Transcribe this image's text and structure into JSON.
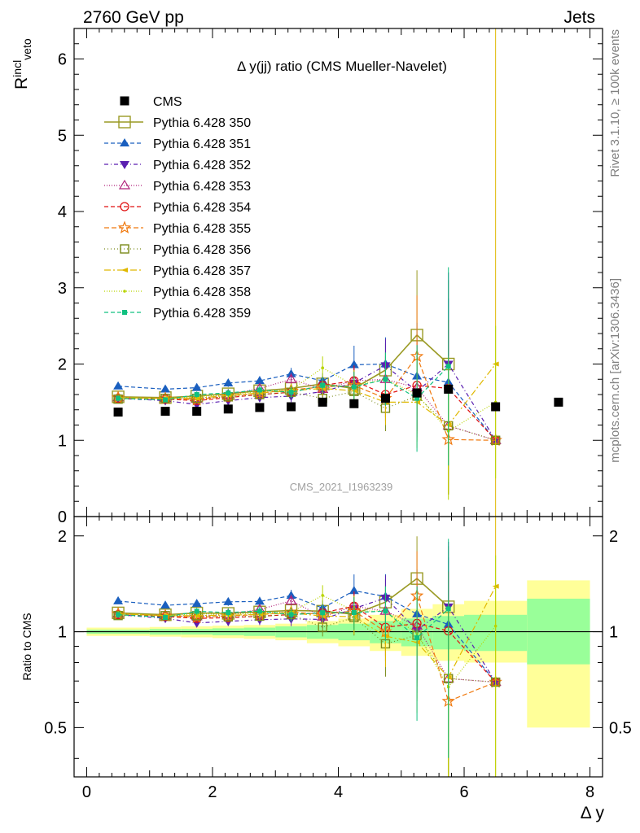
{
  "header": {
    "left": "2760 GeV pp",
    "right": "Jets",
    "side_top": "Rivet 3.1.10, ≥ 100k events",
    "side_bottom": "mcplots.cern.ch [arXiv:1306.3436]",
    "watermark": "CMS_2021_I1963239"
  },
  "colors": {
    "ref_band_inner": "#99ff99",
    "ref_band_outer": "#ffff99"
  },
  "chart_data": {
    "type": "scatter",
    "title": "Δ y(jj) ratio (CMS Mueller-Navelet)",
    "ylabel": "R^incl_veto",
    "xlabel": "Δ y",
    "ratio_ylabel": "Ratio to CMS",
    "xlim": [
      -0.2,
      8.2
    ],
    "ylim": [
      0,
      6.4
    ],
    "ratio_ylim": [
      0.35,
      2.3
    ],
    "ratio_scale": "log",
    "x_ticks": [
      "0",
      "2",
      "4",
      "6",
      "8"
    ],
    "y_ticks": [
      "0",
      "1",
      "2",
      "3",
      "4",
      "5",
      "6"
    ],
    "ratio_ticks": [
      "0.5",
      "1",
      "2"
    ],
    "legend_position": "top-left",
    "data": {
      "name": "CMS",
      "color": "#000000",
      "x": [
        0.5,
        1.25,
        1.75,
        2.25,
        2.75,
        3.25,
        3.75,
        4.25,
        4.75,
        5.25,
        5.75,
        6.5,
        7.5
      ],
      "y": [
        1.37,
        1.38,
        1.38,
        1.41,
        1.43,
        1.44,
        1.5,
        1.48,
        1.55,
        1.62,
        1.67,
        1.44,
        1.5
      ],
      "band_xlo": [
        0,
        1,
        1.5,
        2,
        2.5,
        3,
        3.5,
        4,
        4.5,
        5,
        5.5,
        6,
        7
      ],
      "band_xhi": [
        1,
        1.5,
        2,
        2.5,
        3,
        3.5,
        4,
        4.5,
        5,
        5.5,
        6,
        7,
        8
      ],
      "stat_lo": [
        0.985,
        0.98,
        0.98,
        0.975,
        0.97,
        0.96,
        0.95,
        0.94,
        0.92,
        0.9,
        0.88,
        0.87,
        0.79
      ],
      "stat_hi": [
        1.015,
        1.02,
        1.02,
        1.025,
        1.03,
        1.04,
        1.05,
        1.06,
        1.08,
        1.1,
        1.12,
        1.13,
        1.27
      ],
      "tot_lo": [
        0.97,
        0.965,
        0.96,
        0.955,
        0.95,
        0.94,
        0.92,
        0.9,
        0.87,
        0.84,
        0.81,
        0.8,
        0.5
      ],
      "tot_hi": [
        1.03,
        1.035,
        1.04,
        1.045,
        1.05,
        1.06,
        1.08,
        1.1,
        1.13,
        1.18,
        1.22,
        1.25,
        1.45
      ]
    },
    "x": [
      0.5,
      1.25,
      1.75,
      2.25,
      2.75,
      3.25,
      3.75,
      4.25,
      4.75,
      5.25,
      5.75,
      6.5
    ],
    "series": [
      {
        "name": "Pythia 6.428 350",
        "color": "#9a9a24",
        "marker": "square-open-big",
        "dash": "",
        "width": 1.6,
        "values": [
          1.57,
          1.56,
          1.58,
          1.61,
          1.65,
          1.68,
          1.74,
          1.68,
          1.92,
          2.38,
          2.0,
          null
        ],
        "errors": [
          0.03,
          0.03,
          0.04,
          0.05,
          0.06,
          0.08,
          0.1,
          0.15,
          0.35,
          0.85,
          1.1,
          null
        ]
      },
      {
        "name": "Pythia 6.428 351",
        "color": "#1a5fbf",
        "marker": "triangle-up",
        "dash": "5,3",
        "width": 1.2,
        "values": [
          1.71,
          1.67,
          1.69,
          1.75,
          1.78,
          1.87,
          1.78,
          1.99,
          2.0,
          1.84,
          1.76,
          1.0
        ],
        "errors": [
          0.03,
          0.03,
          0.04,
          0.05,
          0.06,
          0.08,
          0.1,
          0.25,
          0.35,
          0.7,
          1.1,
          0.0
        ]
      },
      {
        "name": "Pythia 6.428 352",
        "color": "#5a1fb0",
        "marker": "triangle-down",
        "dash": "5,3,1,3",
        "width": 1.2,
        "values": [
          1.55,
          1.52,
          1.47,
          1.52,
          1.56,
          1.58,
          1.64,
          1.75,
          1.98,
          1.64,
          2.0,
          1.0
        ],
        "errors": [
          0.03,
          0.03,
          0.04,
          0.05,
          0.06,
          0.08,
          0.1,
          0.2,
          0.35,
          0.6,
          1.2,
          0.0
        ]
      },
      {
        "name": "Pythia 6.428 353",
        "color": "#b0207a",
        "marker": "triangle-up-open",
        "dash": "1,2",
        "width": 1.2,
        "values": [
          1.56,
          1.55,
          1.54,
          1.6,
          1.68,
          1.8,
          1.67,
          1.78,
          1.8,
          1.69,
          1.19,
          1.0
        ],
        "errors": [
          0.03,
          0.03,
          0.04,
          0.05,
          0.06,
          0.08,
          0.1,
          0.2,
          0.3,
          0.6,
          0.9,
          0.0
        ]
      },
      {
        "name": "Pythia 6.428 354",
        "color": "#e01010",
        "marker": "circle-open",
        "dash": "5,3",
        "width": 1.2,
        "values": [
          1.55,
          1.54,
          1.52,
          1.56,
          1.6,
          1.63,
          1.72,
          1.78,
          1.6,
          1.72,
          1.68,
          1.0
        ],
        "errors": [
          0.03,
          0.03,
          0.04,
          0.05,
          0.06,
          0.08,
          0.1,
          0.2,
          0.3,
          0.6,
          0.9,
          0.0
        ]
      },
      {
        "name": "Pythia 6.428 355",
        "color": "#f07a10",
        "marker": "star-open",
        "dash": "6,3",
        "width": 1.2,
        "values": [
          1.56,
          1.55,
          1.53,
          1.58,
          1.62,
          1.66,
          1.7,
          1.72,
          1.55,
          2.1,
          1.01,
          1.0
        ],
        "errors": [
          0.03,
          0.03,
          0.04,
          0.05,
          0.06,
          0.08,
          0.1,
          0.2,
          0.3,
          0.8,
          0.7,
          0.0
        ]
      },
      {
        "name": "Pythia 6.428 356",
        "color": "#7a8a1a",
        "marker": "square-open",
        "dash": "1,3",
        "width": 1.2,
        "values": [
          1.54,
          1.55,
          1.55,
          1.57,
          1.6,
          1.63,
          1.55,
          1.64,
          1.42,
          1.58,
          1.19,
          1.0
        ],
        "errors": [
          0.03,
          0.03,
          0.04,
          0.05,
          0.06,
          0.08,
          0.1,
          0.2,
          0.3,
          0.6,
          0.9,
          0.0
        ]
      },
      {
        "name": "Pythia 6.428 357",
        "color": "#e0b800",
        "marker": "tri-small",
        "dash": "8,3,2,3",
        "width": 1.2,
        "values": [
          1.56,
          1.55,
          1.55,
          1.59,
          1.62,
          1.65,
          1.68,
          1.65,
          1.5,
          1.5,
          1.2,
          2.0
        ],
        "errors": [
          0.03,
          0.03,
          0.04,
          0.05,
          0.06,
          0.08,
          0.1,
          0.2,
          0.3,
          0.6,
          0.9,
          5.0
        ]
      },
      {
        "name": "Pythia 6.428 358",
        "color": "#b8d400",
        "marker": "dot",
        "dash": "1,2",
        "width": 1.2,
        "values": [
          1.56,
          1.55,
          1.57,
          1.6,
          1.64,
          1.66,
          1.95,
          1.72,
          1.8,
          1.6,
          1.12,
          1.5
        ],
        "errors": [
          0.03,
          0.03,
          0.04,
          0.05,
          0.06,
          0.08,
          0.15,
          0.2,
          0.35,
          0.6,
          0.9,
          1.0
        ]
      },
      {
        "name": "Pythia 6.428 359",
        "color": "#10c080",
        "marker": "square-small",
        "dash": "5,3",
        "width": 1.2,
        "values": [
          1.55,
          1.53,
          1.6,
          1.62,
          1.66,
          1.63,
          1.72,
          1.7,
          1.8,
          1.55,
          1.97,
          null
        ],
        "errors": [
          0.03,
          0.03,
          0.04,
          0.05,
          0.06,
          0.08,
          0.1,
          0.2,
          0.35,
          0.7,
          1.3,
          null
        ]
      }
    ]
  }
}
